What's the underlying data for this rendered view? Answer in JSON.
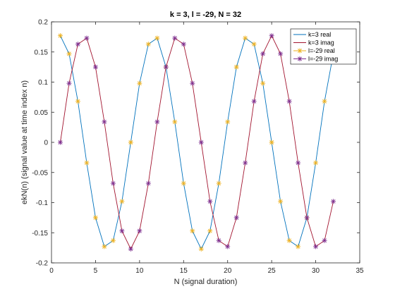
{
  "chart_data": {
    "type": "line",
    "title": "k = 3, l = -29, N = 32",
    "xlabel": "N (signal duration)",
    "ylabel": "ekN(n) (signal value at time index n)",
    "xlim": [
      0,
      35
    ],
    "ylim": [
      -0.2,
      0.2
    ],
    "xticks": [
      0,
      5,
      10,
      15,
      20,
      25,
      30,
      35
    ],
    "yticks": [
      -0.2,
      -0.15,
      -0.1,
      -0.05,
      0,
      0.05,
      0.1,
      0.15,
      0.2
    ],
    "xtick_labels": [
      "0",
      "5",
      "10",
      "15",
      "20",
      "25",
      "30",
      "35"
    ],
    "ytick_labels": [
      "-0.2",
      "-0.15",
      "-0.1",
      "-0.05",
      "0",
      "0.05",
      "0.1",
      "0.15",
      "0.2"
    ],
    "grid": false,
    "legend_position": "top-right",
    "x": [
      1,
      2,
      3,
      4,
      5,
      6,
      7,
      8,
      9,
      10,
      11,
      12,
      13,
      14,
      15,
      16,
      17,
      18,
      19,
      20,
      21,
      22,
      23,
      24,
      25,
      26,
      27,
      28,
      29,
      30,
      31,
      32
    ],
    "series": [
      {
        "name": "k=3 real",
        "color": "#0072BD",
        "marker": "none",
        "values": [
          0.177,
          0.147,
          0.068,
          -0.034,
          -0.125,
          -0.173,
          -0.163,
          -0.098,
          0.0,
          0.098,
          0.163,
          0.173,
          0.125,
          0.034,
          -0.068,
          -0.147,
          -0.177,
          -0.147,
          -0.068,
          0.034,
          0.125,
          0.173,
          0.163,
          0.098,
          0.0,
          -0.098,
          -0.163,
          -0.173,
          -0.125,
          -0.034,
          0.068,
          0.147
        ]
      },
      {
        "name": "k=3 imag",
        "color": "#A2142F",
        "marker": "none",
        "values": [
          0.0,
          0.098,
          0.163,
          0.173,
          0.125,
          0.034,
          -0.068,
          -0.147,
          -0.177,
          -0.147,
          -0.068,
          0.034,
          0.125,
          0.173,
          0.163,
          0.098,
          0.0,
          -0.098,
          -0.163,
          -0.173,
          -0.125,
          -0.034,
          0.068,
          0.147,
          0.177,
          0.147,
          0.068,
          -0.034,
          -0.125,
          -0.173,
          -0.163,
          -0.098
        ]
      },
      {
        "name": "l=-29 real",
        "color": "#EDB120",
        "marker": "star",
        "values": [
          0.177,
          0.147,
          0.068,
          -0.034,
          -0.125,
          -0.173,
          -0.163,
          -0.098,
          0.0,
          0.098,
          0.163,
          0.173,
          0.125,
          0.034,
          -0.068,
          -0.147,
          -0.177,
          -0.147,
          -0.068,
          0.034,
          0.125,
          0.173,
          0.163,
          0.098,
          0.0,
          -0.098,
          -0.163,
          -0.173,
          -0.125,
          -0.034,
          0.068,
          0.147
        ]
      },
      {
        "name": "l=-29 imag",
        "color": "#7E2F8E",
        "marker": "star",
        "values": [
          0.0,
          0.098,
          0.163,
          0.173,
          0.125,
          0.034,
          -0.068,
          -0.147,
          -0.177,
          -0.147,
          -0.068,
          0.034,
          0.125,
          0.173,
          0.163,
          0.098,
          0.0,
          -0.098,
          -0.163,
          -0.173,
          -0.125,
          -0.034,
          0.068,
          0.147,
          0.177,
          0.147,
          0.068,
          -0.034,
          -0.125,
          -0.173,
          -0.163,
          -0.098
        ]
      }
    ]
  }
}
